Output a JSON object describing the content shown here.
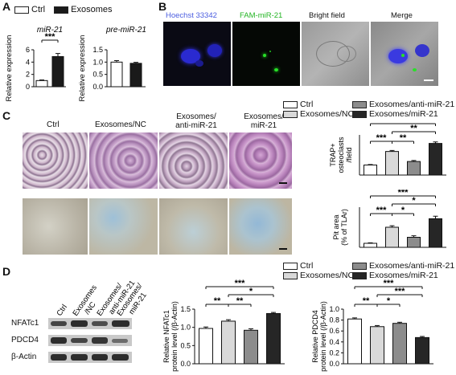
{
  "panels": {
    "A": "A",
    "B": "B",
    "C": "C",
    "D": "D"
  },
  "legend_A": {
    "ctrl": "Ctrl",
    "exo": "Exosomes"
  },
  "legend_C": {
    "ctrl": "Ctrl",
    "nc": "Exosomes/NC",
    "anti": "Exosomes/anti-miR-21",
    "mir": "Exosomes/miR-21"
  },
  "legend_D": {
    "ctrl": "Ctrl",
    "nc": "Exosomes/NC",
    "anti": "Exosomes/anti-miR-21",
    "mir": "Exosomes/miR-21"
  },
  "micro_B": {
    "labels": [
      "Hoechst 33342",
      "FAM-miR-21",
      "Bright field",
      "Merge"
    ]
  },
  "stain_C": {
    "labels": [
      "Ctrl",
      "Exosomes/NC",
      "Exosomes/\nanti-miR-21",
      "Exosomes/\nmiR-21"
    ]
  },
  "wb_D": {
    "columns": [
      "Ctrl",
      "Exosomes\n/NC",
      "Exosomes/\nanti-miR-21",
      "Exosomes/\nmiR-21"
    ],
    "rows": [
      "NFATc1",
      "PDCD4",
      "β-Actin"
    ]
  },
  "colors": {
    "ctrl": "#ffffff",
    "nc": "#d9d9d9",
    "anti": "#8c8c8c",
    "mir": "#262626",
    "exo": "#1a1a1a"
  },
  "chart_data": [
    {
      "id": "A1",
      "type": "bar",
      "title": "miR-21",
      "ylabel": "Relative expression",
      "categories": [
        "Ctrl",
        "Exosomes"
      ],
      "values": [
        1,
        4.9
      ],
      "errors": [
        0.1,
        0.5
      ],
      "ylim": [
        0,
        6
      ],
      "yticks": [
        0,
        2,
        4,
        6
      ],
      "sig": [
        {
          "a": 0,
          "b": 1,
          "label": "***"
        }
      ]
    },
    {
      "id": "A2",
      "type": "bar",
      "title": "pre-miR-21",
      "ylabel": "Relative expression",
      "categories": [
        "Ctrl",
        "Exosomes"
      ],
      "values": [
        1,
        0.95
      ],
      "errors": [
        0.06,
        0.04
      ],
      "ylim": [
        0,
        1.5
      ],
      "yticks": [
        0,
        0.5,
        1.0,
        1.5
      ],
      "sig": []
    },
    {
      "id": "C1",
      "type": "bar",
      "ylabel": "TRAP+ osteoclasts /field",
      "categories": [
        "Ctrl",
        "Exosomes/NC",
        "Exosomes/anti-miR-21",
        "Exosomes/miR-21"
      ],
      "values": [
        20,
        47,
        27,
        63
      ],
      "errors": [
        1,
        2,
        2,
        3
      ],
      "ylim": [
        0,
        80
      ],
      "yticks": [],
      "sig": [
        {
          "a": 0,
          "b": 1,
          "label": "***"
        },
        {
          "a": 1,
          "b": 2,
          "label": "**"
        },
        {
          "a": 1,
          "b": 3,
          "label": "**"
        },
        {
          "a": 0,
          "b": 3,
          "label": "***"
        }
      ]
    },
    {
      "id": "C2",
      "type": "bar",
      "ylabel": "Pit area (% of TLAr)",
      "categories": [
        "Ctrl",
        "Exosomes/NC",
        "Exosomes/anti-miR-21",
        "Exosomes/miR-21"
      ],
      "values": [
        8,
        40,
        20,
        57
      ],
      "errors": [
        1,
        3,
        3,
        5
      ],
      "ylim": [
        0,
        80
      ],
      "yticks": [],
      "sig": [
        {
          "a": 0,
          "b": 1,
          "label": "***"
        },
        {
          "a": 1,
          "b": 2,
          "label": "*"
        },
        {
          "a": 1,
          "b": 3,
          "label": "*"
        },
        {
          "a": 0,
          "b": 3,
          "label": "***"
        }
      ]
    },
    {
      "id": "D1",
      "type": "bar",
      "ylabel": "Relative NFATc1 protein level (/β-Actin)",
      "categories": [
        "Ctrl",
        "Exosomes/NC",
        "Exosomes/anti-miR-21",
        "Exosomes/miR-21"
      ],
      "values": [
        0.97,
        1.17,
        0.92,
        1.38
      ],
      "errors": [
        0.04,
        0.04,
        0.04,
        0.03
      ],
      "ylim": [
        0,
        1.5
      ],
      "yticks": [
        0,
        0.5,
        1.0,
        1.5
      ],
      "sig": [
        {
          "a": 0,
          "b": 1,
          "label": "**"
        },
        {
          "a": 1,
          "b": 2,
          "label": "**"
        },
        {
          "a": 1,
          "b": 3,
          "label": "*"
        },
        {
          "a": 0,
          "b": 3,
          "label": "***"
        }
      ]
    },
    {
      "id": "D2",
      "type": "bar",
      "ylabel": "Relative PDCD4 protein level (/β-Actin)",
      "categories": [
        "Ctrl",
        "Exosomes/NC",
        "Exosomes/anti-miR-21",
        "Exosomes/miR-21"
      ],
      "values": [
        0.82,
        0.68,
        0.74,
        0.48
      ],
      "errors": [
        0.02,
        0.02,
        0.02,
        0.02
      ],
      "ylim": [
        0,
        1.0
      ],
      "yticks": [
        0,
        0.2,
        0.4,
        0.6,
        0.8,
        1.0
      ],
      "sig": [
        {
          "a": 0,
          "b": 1,
          "label": "**"
        },
        {
          "a": 1,
          "b": 2,
          "label": "*"
        },
        {
          "a": 1,
          "b": 3,
          "label": "***"
        },
        {
          "a": 0,
          "b": 3,
          "label": "***"
        }
      ]
    }
  ]
}
